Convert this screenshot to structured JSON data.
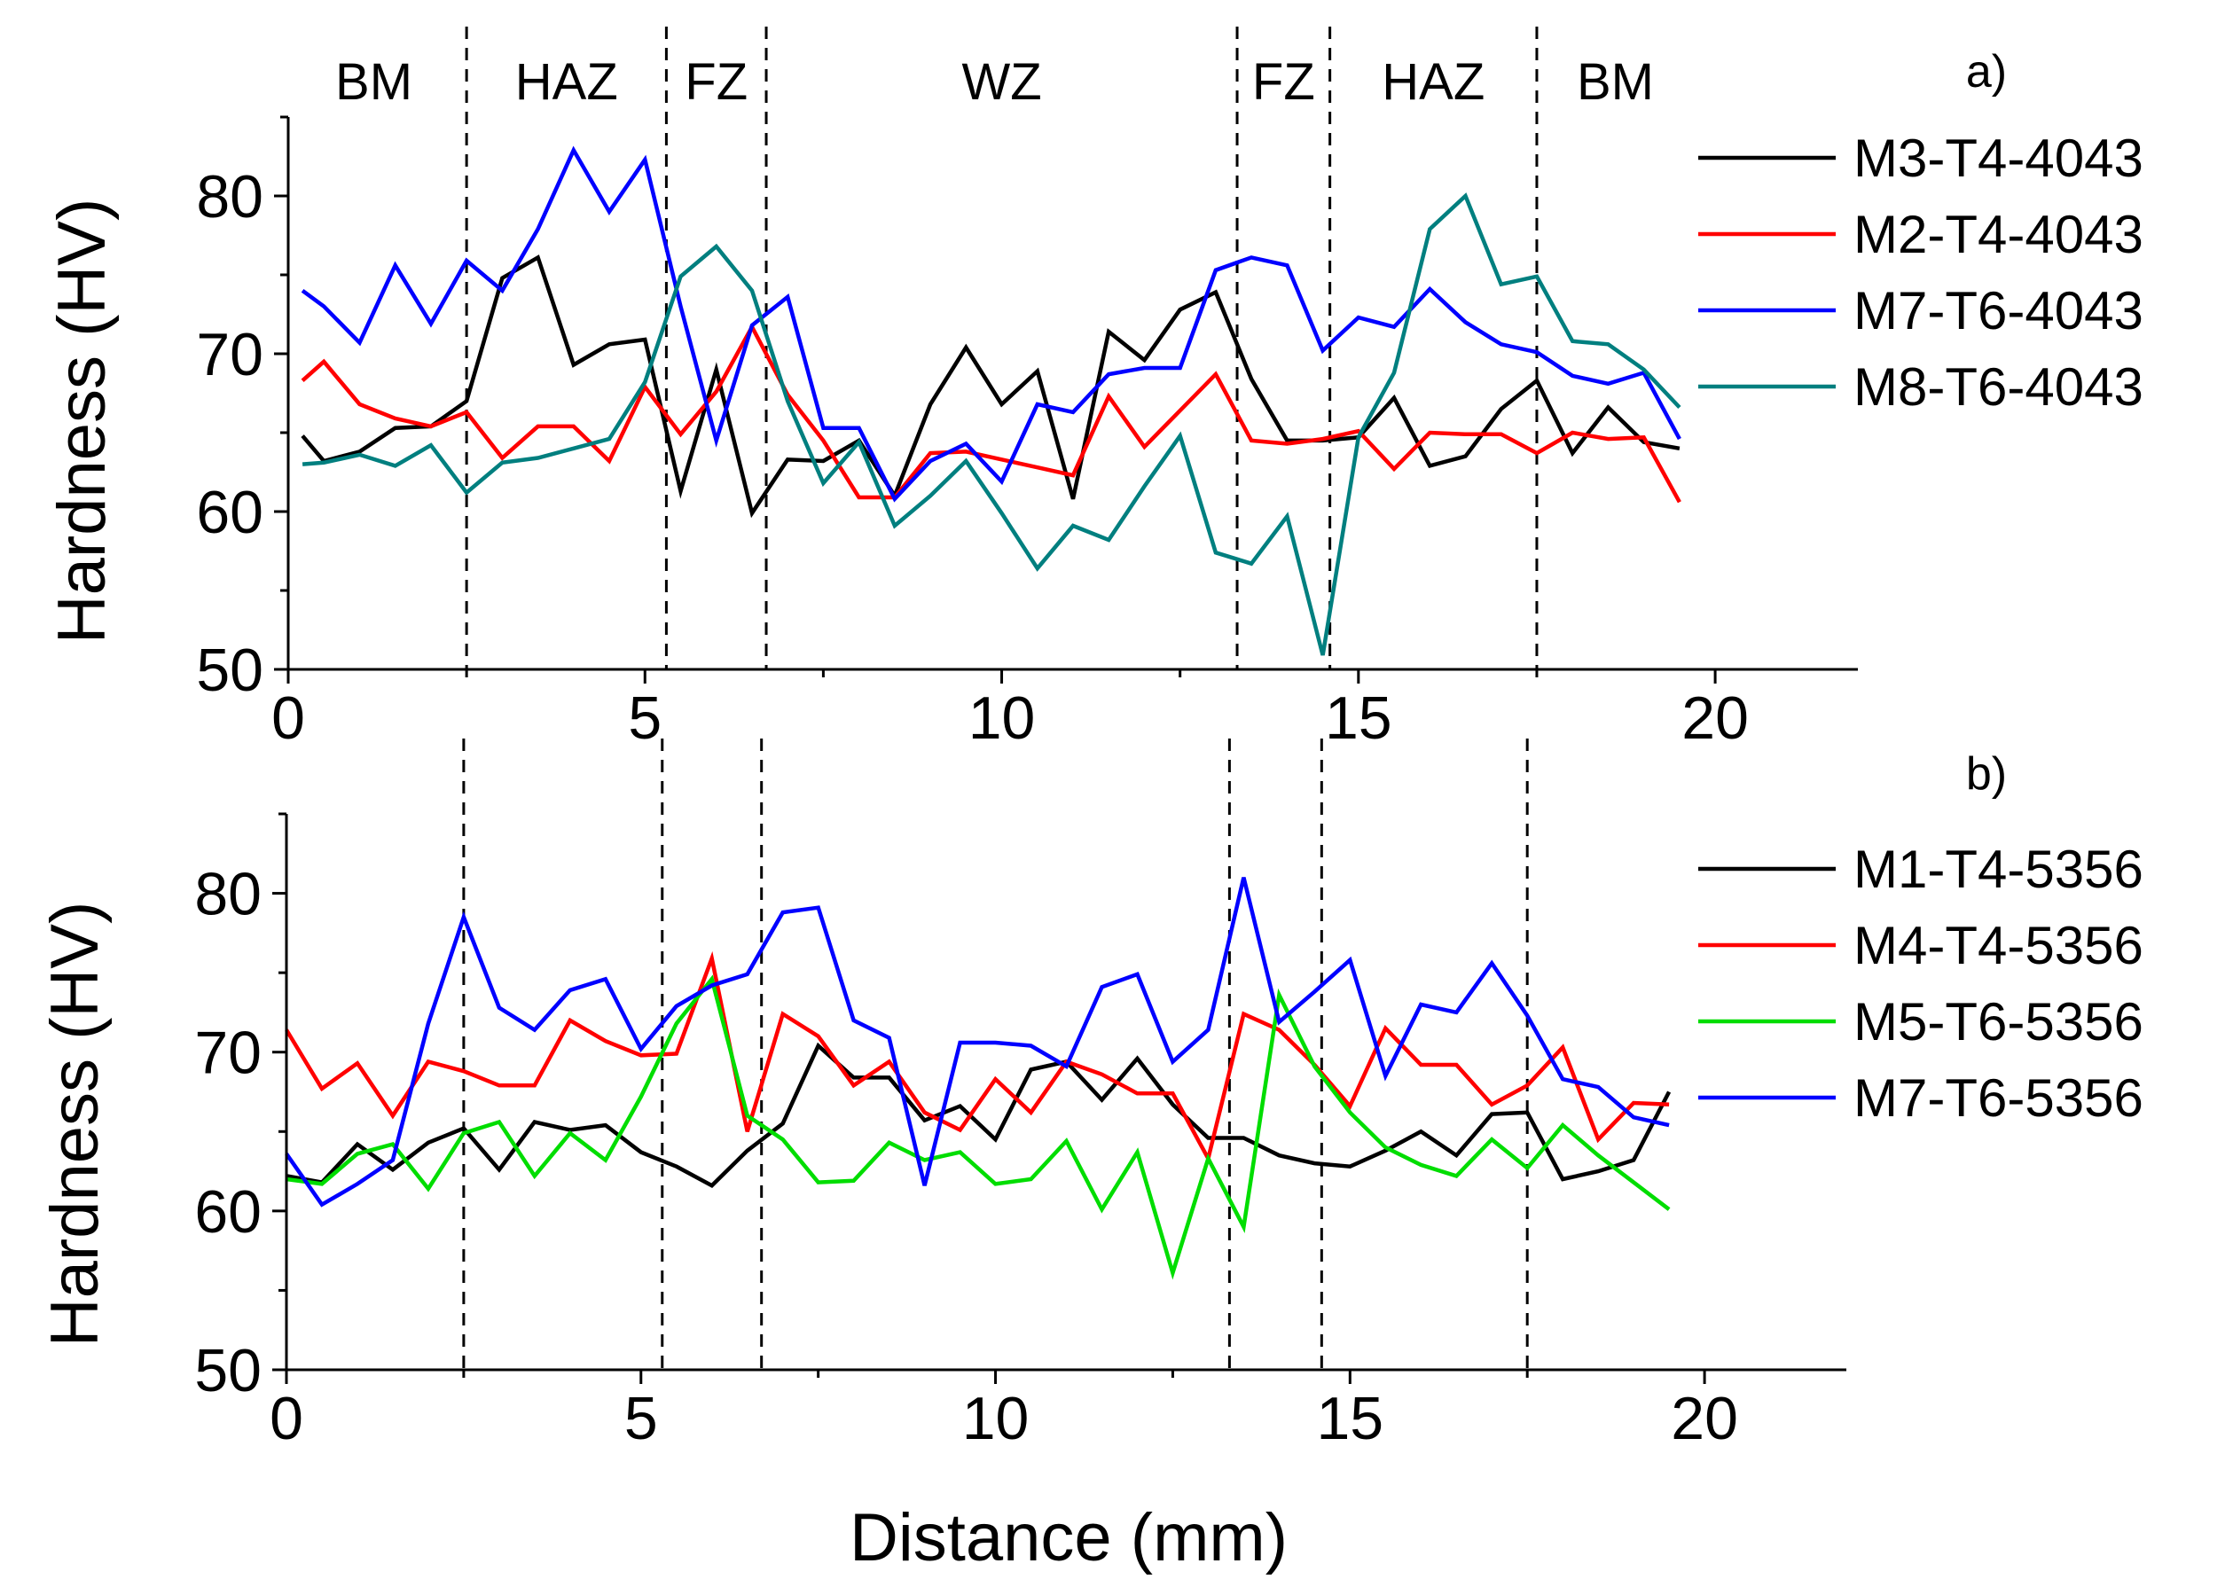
{
  "colors": {
    "black": "#000000",
    "red": "#ff0000",
    "blue": "#0000ff",
    "teal": "#007f7f",
    "green": "#00dd00"
  },
  "chart_data": [
    {
      "type": "line",
      "panel_tag": "a)",
      "xlabel": "",
      "ylabel": "Hardness (HV)",
      "xlim": [
        0,
        22
      ],
      "ylim": [
        50,
        85
      ],
      "xticks": [
        0,
        5,
        10,
        15,
        20
      ],
      "yticks": [
        50,
        60,
        70,
        80
      ],
      "grid": false,
      "legend_position": "right",
      "boundaries": [
        2.5,
        5.3,
        6.7,
        13.3,
        14.6,
        17.5
      ],
      "regions": [
        {
          "label": "BM",
          "x": 1.2
        },
        {
          "label": "HAZ",
          "x": 3.9
        },
        {
          "label": "FZ",
          "x": 6.0
        },
        {
          "label": "WZ",
          "x": 10.0
        },
        {
          "label": "FZ",
          "x": 13.95
        },
        {
          "label": "HAZ",
          "x": 16.05
        },
        {
          "label": "BM",
          "x": 18.6
        }
      ],
      "series": [
        {
          "name": "M3-T4-4043",
          "color": "#000000",
          "x": [
            0.2,
            0.5,
            1,
            1.5,
            2,
            2.5,
            3,
            3.5,
            4,
            4.5,
            5,
            5.5,
            6,
            6.5,
            7,
            7.5,
            8,
            8.5,
            9,
            9.5,
            10,
            10.5,
            11,
            11.5,
            12,
            12.5,
            13,
            13.5,
            14,
            14.5,
            15,
            15.5,
            16,
            16.5,
            17,
            17.5,
            18,
            18.5,
            19,
            19.5
          ],
          "y": [
            64.8,
            63.2,
            63.8,
            65.3,
            65.4,
            67.0,
            74.8,
            76.1,
            69.3,
            70.6,
            70.9,
            61.3,
            69.0,
            59.9,
            63.3,
            63.2,
            64.5,
            61.0,
            66.8,
            70.4,
            66.8,
            68.9,
            60.8,
            71.4,
            69.6,
            72.8,
            73.9,
            68.4,
            64.5,
            64.5,
            64.7,
            67.2,
            62.9,
            63.5,
            66.5,
            68.3,
            63.7,
            66.6,
            64.4,
            64.0
          ]
        },
        {
          "name": "M2-T4-4043",
          "color": "#ff0000",
          "x": [
            0.2,
            0.5,
            1,
            1.5,
            2,
            2.5,
            3,
            3.5,
            4,
            4.5,
            5,
            5.5,
            6,
            6.5,
            7,
            7.5,
            8,
            8.5,
            9,
            9.5,
            10,
            10.5,
            11,
            11.5,
            12,
            12.5,
            13,
            13.5,
            14,
            14.5,
            15,
            15.5,
            16,
            16.5,
            17,
            17.5,
            18,
            18.5,
            19,
            19.5
          ],
          "y": [
            68.3,
            69.5,
            66.8,
            65.9,
            65.4,
            66.3,
            63.4,
            65.4,
            65.4,
            63.2,
            67.9,
            64.9,
            67.6,
            71.7,
            67.4,
            64.5,
            60.9,
            60.9,
            63.7,
            63.8,
            63.3,
            62.8,
            62.3,
            67.3,
            64.1,
            66.4,
            68.7,
            64.5,
            64.3,
            64.6,
            65.1,
            62.7,
            65.0,
            64.9,
            64.9,
            63.7,
            65.0,
            64.6,
            64.7,
            60.6
          ]
        },
        {
          "name": "M7-T6-4043",
          "color": "#0000ff",
          "x": [
            0.2,
            0.5,
            1,
            1.5,
            2,
            2.5,
            3,
            3.5,
            4,
            4.5,
            5,
            5.5,
            6,
            6.5,
            7,
            7.5,
            8,
            8.5,
            9,
            9.5,
            10,
            10.5,
            11,
            11.5,
            12,
            12.5,
            13,
            13.5,
            14,
            14.5,
            15,
            15.5,
            16,
            16.5,
            17,
            17.5,
            18,
            18.5,
            19,
            19.5
          ],
          "y": [
            74.0,
            73.0,
            70.7,
            75.6,
            71.9,
            75.9,
            74.0,
            77.9,
            82.9,
            79.0,
            82.3,
            73.0,
            64.5,
            71.8,
            73.6,
            65.3,
            65.3,
            60.8,
            63.2,
            64.3,
            61.9,
            66.8,
            66.3,
            68.7,
            69.1,
            69.1,
            75.3,
            76.1,
            75.6,
            70.2,
            72.3,
            71.7,
            74.1,
            72.0,
            70.6,
            70.1,
            68.6,
            68.1,
            68.8,
            64.6
          ]
        },
        {
          "name": "M8-T6-4043",
          "color": "#007f7f",
          "x": [
            0.2,
            0.5,
            1,
            1.5,
            2,
            2.5,
            3,
            3.5,
            4,
            4.5,
            5,
            5.5,
            6,
            6.5,
            7,
            7.5,
            8,
            8.5,
            9,
            9.5,
            10,
            10.5,
            11,
            11.5,
            12,
            12.5,
            13,
            13.5,
            14,
            14.5,
            15,
            15.5,
            16,
            16.5,
            17,
            17.5,
            18,
            18.5,
            19,
            19.5
          ],
          "y": [
            63.0,
            63.1,
            63.6,
            62.9,
            64.2,
            61.2,
            63.1,
            63.4,
            64.0,
            64.6,
            68.2,
            74.9,
            76.8,
            74.0,
            67.0,
            61.8,
            64.4,
            59.1,
            61.0,
            63.2,
            59.9,
            56.4,
            59.1,
            58.2,
            61.6,
            64.8,
            57.4,
            56.7,
            59.7,
            50.9,
            64.7,
            68.8,
            77.9,
            80.0,
            74.4,
            74.9,
            70.8,
            70.6,
            69.0,
            66.6
          ]
        }
      ]
    },
    {
      "type": "line",
      "panel_tag": "b)",
      "xlabel": "Distance (mm)",
      "ylabel": "Hardness (HV)",
      "xlim": [
        0,
        22
      ],
      "ylim": [
        50,
        85
      ],
      "xticks": [
        0,
        5,
        10,
        15,
        20
      ],
      "yticks": [
        50,
        60,
        70,
        80
      ],
      "grid": false,
      "legend_position": "right",
      "boundaries": [
        2.5,
        5.3,
        6.7,
        13.3,
        14.6,
        17.5
      ],
      "series": [
        {
          "name": "M1-T4-5356",
          "color": "#000000",
          "x": [
            0,
            0.5,
            1,
            1.5,
            2,
            2.5,
            3,
            3.5,
            4,
            4.5,
            5,
            5.5,
            6,
            6.5,
            7,
            7.5,
            8,
            8.5,
            9,
            9.5,
            10,
            10.5,
            11,
            11.5,
            12,
            12.5,
            13,
            13.5,
            14,
            14.5,
            15,
            15.5,
            16,
            16.5,
            17,
            17.5,
            18,
            18.5,
            19,
            19.5
          ],
          "y": [
            62.2,
            61.8,
            64.2,
            62.6,
            64.3,
            65.2,
            62.6,
            65.6,
            65.1,
            65.4,
            63.7,
            62.8,
            61.6,
            63.8,
            65.5,
            70.4,
            68.4,
            68.4,
            65.7,
            66.6,
            64.5,
            68.9,
            69.4,
            67.0,
            69.6,
            66.7,
            64.6,
            64.6,
            63.5,
            63.0,
            62.8,
            63.8,
            65.0,
            63.5,
            66.1,
            66.2,
            62.0,
            62.5,
            63.2,
            67.5
          ]
        },
        {
          "name": "M4-T4-5356",
          "color": "#ff0000",
          "x": [
            0,
            0.5,
            1,
            1.5,
            2,
            2.5,
            3,
            3.5,
            4,
            4.5,
            5,
            5.5,
            6,
            6.5,
            7,
            7.5,
            8,
            8.5,
            9,
            9.5,
            10,
            10.5,
            11,
            11.5,
            12,
            12.5,
            13,
            13.5,
            14,
            14.5,
            15,
            15.5,
            16,
            16.5,
            17,
            17.5,
            18,
            18.5,
            19,
            19.5
          ],
          "y": [
            71.4,
            67.7,
            69.3,
            66.0,
            69.4,
            68.8,
            67.9,
            67.9,
            72.0,
            70.7,
            69.8,
            69.9,
            75.9,
            65.0,
            72.4,
            71.0,
            67.9,
            69.4,
            66.2,
            65.1,
            68.3,
            66.2,
            69.4,
            68.6,
            67.4,
            67.4,
            63.3,
            72.4,
            71.4,
            69.2,
            66.6,
            71.5,
            69.2,
            69.2,
            66.7,
            67.9,
            70.3,
            64.5,
            66.8,
            66.7
          ]
        },
        {
          "name": "M5-T6-5356",
          "color": "#00dd00",
          "x": [
            0,
            0.5,
            1,
            1.5,
            2,
            2.5,
            3,
            3.5,
            4,
            4.5,
            5,
            5.5,
            6,
            6.5,
            7,
            7.5,
            8,
            8.5,
            9,
            9.5,
            10,
            10.5,
            11,
            11.5,
            12,
            12.5,
            13,
            13.5,
            14,
            14.5,
            15,
            15.5,
            16,
            16.5,
            17,
            17.5,
            18,
            18.5,
            19,
            19.5
          ],
          "y": [
            62.0,
            61.7,
            63.6,
            64.2,
            61.4,
            64.9,
            65.6,
            62.2,
            64.9,
            63.2,
            67.2,
            71.8,
            74.6,
            66.0,
            64.5,
            61.8,
            61.9,
            64.3,
            63.2,
            63.7,
            61.7,
            62.0,
            64.4,
            60.1,
            63.7,
            56.1,
            63.3,
            59.0,
            73.6,
            69.1,
            66.2,
            64.0,
            62.9,
            62.2,
            64.5,
            62.7,
            65.4,
            63.5,
            61.8,
            60.1
          ]
        },
        {
          "name": "M7-T6-5356",
          "color": "#0000ff",
          "x": [
            0,
            0.5,
            1,
            1.5,
            2,
            2.5,
            3,
            3.5,
            4,
            4.5,
            5,
            5.5,
            6,
            6.5,
            7,
            7.5,
            8,
            8.5,
            9,
            9.5,
            10,
            10.5,
            11,
            11.5,
            12,
            12.5,
            13,
            13.5,
            14,
            14.5,
            15,
            15.5,
            16,
            16.5,
            17,
            17.5,
            18,
            18.5,
            19,
            19.5
          ],
          "y": [
            63.6,
            60.4,
            61.7,
            63.2,
            71.8,
            78.5,
            72.8,
            71.4,
            73.9,
            74.6,
            70.2,
            72.9,
            74.2,
            74.9,
            78.8,
            79.1,
            72.0,
            70.9,
            61.6,
            70.6,
            70.6,
            70.4,
            69.1,
            74.1,
            74.9,
            69.4,
            71.4,
            81.0,
            71.9,
            73.8,
            75.8,
            68.5,
            73.0,
            72.5,
            75.6,
            72.3,
            68.3,
            67.8,
            65.9,
            65.4
          ]
        }
      ]
    }
  ]
}
